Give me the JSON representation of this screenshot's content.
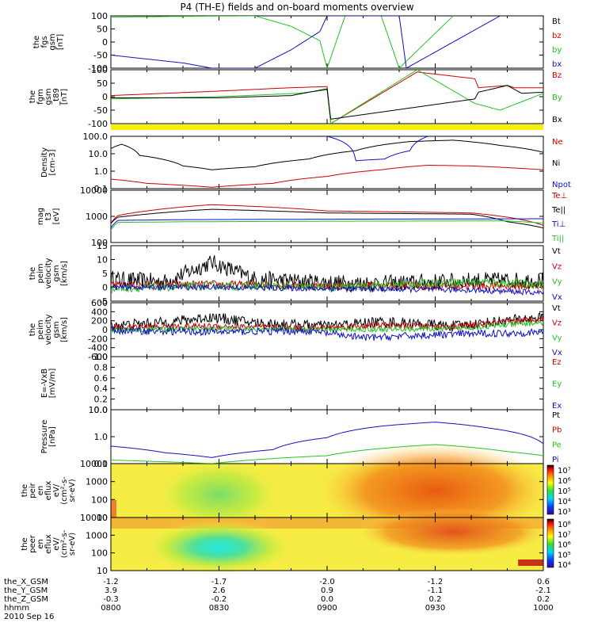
{
  "title": "P4 (TH-E) fields and on-board moments overview",
  "date_label": "2010 Sep 16",
  "panels": [
    {
      "ylabel": [
        "the",
        "fgs",
        "gsm",
        "[nT]"
      ],
      "yticks": [
        "100",
        "50",
        "0",
        "-50",
        "-100"
      ],
      "legend": [
        {
          "text": "Bt",
          "color": "#000000"
        },
        {
          "text": "bz",
          "color": "#cc0000"
        },
        {
          "text": "by",
          "color": "#22c322"
        },
        {
          "text": "bx",
          "color": "#1010c8"
        }
      ]
    },
    {
      "ylabel": [
        "the",
        "fgm",
        "gsm",
        "_t89",
        "[nT]"
      ],
      "yticks": [
        "100",
        "50",
        "0",
        "-50",
        "-100"
      ],
      "legend": [
        {
          "text": "Bz",
          "color": "#cc0000"
        },
        {
          "text": "By",
          "color": "#22c322"
        },
        {
          "text": "Bx",
          "color": "#000000"
        }
      ]
    },
    {
      "ylabel": [
        "Density",
        "[cm-3]"
      ],
      "yticks": [
        "100.0",
        "10.0",
        "1.0",
        "0.1"
      ],
      "legend": [
        {
          "text": "Ne",
          "color": "#cc0000"
        },
        {
          "text": "Ni",
          "color": "#000000"
        },
        {
          "text": "Npot",
          "color": "#1010c8"
        }
      ]
    },
    {
      "ylabel": [
        "mag",
        "t3",
        "[eV]"
      ],
      "yticks": [
        "10000",
        "1000",
        "100"
      ],
      "legend": [
        {
          "text": "Te⊥",
          "color": "#cc0000"
        },
        {
          "text": "Te||",
          "color": "#000000"
        },
        {
          "text": "Ti⊥",
          "color": "#1010c8"
        },
        {
          "text": "Ti||",
          "color": "#22c322"
        }
      ]
    },
    {
      "ylabel": [
        "the",
        "peim",
        "velocity",
        "gsm",
        "[km/s]"
      ],
      "yticks": [
        "15",
        "10",
        "5",
        "0",
        "-5"
      ],
      "legend": [
        {
          "text": "Vt",
          "color": "#000000"
        },
        {
          "text": "Vz",
          "color": "#cc0000"
        },
        {
          "text": "Vy",
          "color": "#22c322"
        },
        {
          "text": "Vx",
          "color": "#1010c8"
        }
      ]
    },
    {
      "ylabel": [
        "the",
        "peim",
        "velocity",
        "gsm",
        "[km/s]"
      ],
      "yticks": [
        "600",
        "400",
        "200",
        "0",
        "-200",
        "-400",
        "-600"
      ],
      "legend": [
        {
          "text": "Vt",
          "color": "#000000"
        },
        {
          "text": "Vz",
          "color": "#cc0000"
        },
        {
          "text": "Vy",
          "color": "#22c322"
        },
        {
          "text": "Vx",
          "color": "#1010c8"
        }
      ]
    },
    {
      "ylabel": [
        "E=-VxB",
        "[mV/m]"
      ],
      "yticks": [
        "1.0",
        "0.8",
        "0.6",
        "0.4",
        "0.2",
        "0.0"
      ],
      "legend": [
        {
          "text": "Ez",
          "color": "#cc0000"
        },
        {
          "text": "Ey",
          "color": "#22c322"
        },
        {
          "text": "Ex",
          "color": "#1010c8"
        }
      ]
    },
    {
      "ylabel": [
        "Pressure",
        "[nPa]"
      ],
      "yticks": [
        "10.0",
        "1.0",
        "0.1"
      ],
      "legend": [
        {
          "text": "Pt",
          "color": "#000000"
        },
        {
          "text": "Pb",
          "color": "#cc0000"
        },
        {
          "text": "Pe",
          "color": "#22c322"
        },
        {
          "text": "Pi",
          "color": "#1010c8"
        }
      ]
    },
    {
      "ylabel": [
        "the",
        "peir",
        "en",
        "eflux",
        "eV/",
        "(cm²-s-",
        "sr-eV)"
      ],
      "yticks": [
        "10000",
        "1000",
        "100",
        "10"
      ],
      "colorbar": [
        "10⁷",
        "10⁶",
        "10⁵",
        "10⁴",
        "10³"
      ]
    },
    {
      "ylabel": [
        "the",
        "peer",
        "en",
        "eflux",
        "eV/",
        "(cm²-s-",
        "sr-eV)"
      ],
      "yticks": [
        "10000",
        "1000",
        "100",
        "10"
      ],
      "colorbar": [
        "10⁸",
        "10⁷",
        "10⁶",
        "10⁵",
        "10⁴"
      ]
    }
  ],
  "xaxis": {
    "row_labels": [
      "the_X_GSM",
      "the_Y_GSM",
      "the_Z_GSM",
      "hhmm"
    ],
    "columns": [
      [
        "-1.2",
        "3.9",
        "-0.3",
        "0800"
      ],
      [
        "-1.7",
        "2.6",
        "-0.2",
        "0830"
      ],
      [
        "-2.0",
        "0.9",
        "0.0",
        "0900"
      ],
      [
        "-1.2",
        "-1.1",
        "0.2",
        "0930"
      ],
      [
        "0.6",
        "-2.1",
        "0.2",
        "1000"
      ]
    ]
  },
  "chart_data": {
    "type": "line",
    "title": "P4 (TH-E) fields and on-board moments overview",
    "x_label": "hhmm",
    "x_range": [
      "0800",
      "1000"
    ],
    "x_ticks": [
      "0800",
      "0830",
      "0900",
      "0930",
      "1000"
    ],
    "x_key_times": [
      0,
      30,
      60,
      90,
      120
    ],
    "panels": [
      {
        "name": "the fgs gsm",
        "unit": "nT",
        "ylim": [
          -100,
          100
        ],
        "series": [
          {
            "name": "by",
            "color": "#22c322",
            "x": [
              0,
              20,
              40,
              50,
              58,
              60,
              65,
              75,
              80,
              95
            ],
            "y": [
              95,
              98,
              100,
              60,
              5,
              -100,
              100,
              100,
              -100,
              100
            ]
          },
          {
            "name": "bx",
            "color": "#1010c8",
            "x": [
              0,
              20,
              28,
              40,
              50,
              58,
              60,
              80,
              82,
              108
            ],
            "y": [
              -50,
              -80,
              -100,
              -100,
              -30,
              40,
              100,
              100,
              -100,
              100
            ]
          }
        ]
      },
      {
        "name": "the fgm gsm _t89",
        "unit": "nT",
        "ylim": [
          -120,
          120
        ],
        "series": [
          {
            "name": "Bz",
            "color": "#cc0000",
            "x": [
              0,
              30,
              50,
              60,
              61,
              85,
              101,
              102,
              110,
              112,
              120
            ],
            "y": [
              5,
              25,
              40,
              45,
              -120,
              110,
              80,
              40,
              50,
              40,
              40
            ]
          },
          {
            "name": "By",
            "color": "#22c322",
            "x": [
              0,
              30,
              52,
              60,
              61,
              85,
              101,
              108,
              120
            ],
            "y": [
              -10,
              0,
              15,
              30,
              -120,
              120,
              -30,
              -60,
              15
            ]
          },
          {
            "name": "Bx",
            "color": "#000000",
            "x": [
              0,
              30,
              50,
              60,
              61,
              101,
              102,
              110,
              114,
              120
            ],
            "y": [
              -5,
              -5,
              5,
              35,
              -100,
              -10,
              20,
              50,
              15,
              20
            ]
          }
        ]
      },
      {
        "name": "Density",
        "unit": "cm-3",
        "ylim": [
          0.1,
          100
        ],
        "log": true,
        "series": [
          {
            "name": "Ni",
            "color": "#000000",
            "x": [
              0,
              3,
              8,
              20,
              28,
              40,
              55,
              68,
              83,
              95,
              108,
              120
            ],
            "y": [
              20,
              35,
              8,
              2.0,
              1.2,
              1.8,
              5,
              15,
              50,
              60,
              30,
              12
            ]
          },
          {
            "name": "Ne",
            "color": "#cc0000",
            "x": [
              0,
              10,
              28,
              45,
              60,
              75,
              88,
              100,
              120
            ],
            "y": [
              0.35,
              0.2,
              0.12,
              0.2,
              0.5,
              1.2,
              2.2,
              2.0,
              1.2
            ]
          },
          {
            "name": "Npot",
            "color": "#1010c8",
            "x": [
              60,
              68,
              76,
              83,
              88
            ],
            "y": [
              100,
              4,
              5,
              15,
              100
            ]
          }
        ]
      },
      {
        "name": "mag t3",
        "unit": "eV",
        "ylim": [
          30,
          10000
        ],
        "log": true,
        "series": [
          {
            "name": "Te⊥",
            "color": "#cc0000",
            "x": [
              0,
              2,
              10,
              28,
              45,
              60,
              80,
              100,
              110,
              120
            ],
            "y": [
              250,
              600,
              1000,
              2000,
              1500,
              1000,
              900,
              800,
              500,
              200
            ]
          },
          {
            "name": "Te||",
            "color": "#000000",
            "x": [
              0,
              2,
              10,
              28,
              60,
              100,
              110,
              120
            ],
            "y": [
              250,
              500,
              700,
              1200,
              800,
              700,
              300,
              150
            ]
          },
          {
            "name": "Ti⊥",
            "color": "#1010c8",
            "x": [
              0,
              2,
              20,
              60,
              120
            ],
            "y": [
              150,
              350,
              380,
              400,
              420
            ]
          },
          {
            "name": "Ti||",
            "color": "#22c322",
            "x": [
              0,
              2,
              20,
              60,
              110,
              120
            ],
            "y": [
              120,
              280,
              300,
              320,
              330,
              260
            ]
          }
        ]
      },
      {
        "name": "the peim velocity gsm",
        "unit": "km/s",
        "ylim": [
          -5,
          15
        ],
        "noisy": true,
        "series": [
          {
            "name": "Vt",
            "color": "#000000",
            "x": [
              0,
              15,
              28,
              40,
              55,
              65,
              80,
              100,
              120
            ],
            "y": [
              3,
              2,
              9,
              3,
              2,
              1.5,
              1.5,
              2.5,
              2.5
            ],
            "noise": 3
          },
          {
            "name": "Vz",
            "color": "#cc0000",
            "x": [
              0,
              28,
              55,
              80,
              120
            ],
            "y": [
              0.5,
              1,
              0.5,
              0.5,
              0.5
            ],
            "noise": 1.5
          },
          {
            "name": "Vy",
            "color": "#22c322",
            "x": [
              0,
              28,
              60,
              100,
              120
            ],
            "y": [
              -0.5,
              0.5,
              0,
              2,
              1
            ],
            "noise": 1.5
          },
          {
            "name": "Vx",
            "color": "#1010c8",
            "x": [
              0,
              28,
              60,
              100,
              120
            ],
            "y": [
              0,
              0,
              -0.5,
              -1,
              -2
            ],
            "noise": 1
          }
        ]
      },
      {
        "name": "the peim velocity gsm",
        "unit": "km/s",
        "ylim": [
          -600,
          600
        ],
        "noisy": true,
        "series": [
          {
            "name": "Vt",
            "color": "#000000",
            "x": [
              0,
              15,
              28,
              40,
              60,
              75,
              95,
              110,
              120
            ],
            "y": [
              90,
              160,
              280,
              150,
              80,
              180,
              80,
              200,
              280
            ],
            "noise": 120
          },
          {
            "name": "Vz",
            "color": "#cc0000",
            "x": [
              0,
              28,
              55,
              75,
              95,
              120
            ],
            "y": [
              50,
              80,
              30,
              100,
              60,
              250
            ],
            "noise": 70
          },
          {
            "name": "Vy",
            "color": "#22c322",
            "x": [
              0,
              28,
              55,
              95,
              120
            ],
            "y": [
              0,
              20,
              0,
              20,
              160
            ],
            "noise": 60
          },
          {
            "name": "Vx",
            "color": "#1010c8",
            "x": [
              0,
              28,
              55,
              70,
              95,
              120
            ],
            "y": [
              -20,
              -50,
              -30,
              -180,
              -100,
              -60
            ],
            "noise": 80
          }
        ]
      },
      {
        "name": "E=-VxB",
        "unit": "mV/m",
        "ylim": [
          0,
          1
        ],
        "series": []
      },
      {
        "name": "Pressure",
        "unit": "nPa",
        "ylim": [
          0.02,
          10
        ],
        "log": true,
        "series": [
          {
            "name": "Pi",
            "color": "#1010c8",
            "x": [
              0,
              15,
              28,
              45,
              60,
              75,
              90,
              105,
              120
            ],
            "y": [
              0.15,
              0.07,
              0.04,
              0.1,
              0.4,
              1.5,
              2.4,
              1.2,
              0.2
            ]
          },
          {
            "name": "Pe",
            "color": "#22c322",
            "x": [
              0,
              28,
              60,
              90,
              110,
              120
            ],
            "y": [
              0.03,
              0.02,
              0.05,
              0.18,
              0.08,
              0.05
            ]
          }
        ]
      },
      {
        "name": "the peir en eflux",
        "type": "heatmap",
        "colorbar_range": [
          "10³",
          "10⁷"
        ],
        "ylim": [
          10,
          10000
        ],
        "log": true
      },
      {
        "name": "the peer en eflux",
        "type": "heatmap",
        "colorbar_range": [
          "10⁴",
          "10⁸"
        ],
        "ylim": [
          10,
          10000
        ],
        "log": true
      }
    ]
  }
}
